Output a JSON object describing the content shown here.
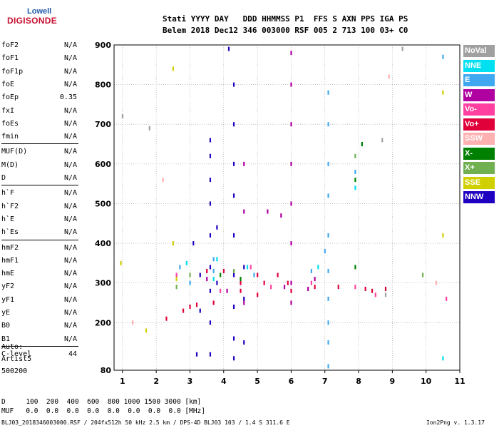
{
  "logo": {
    "top": "Lowell",
    "bottom": "DIGISONDE"
  },
  "header": {
    "row1": "Stati YYYY DAY   DDD HHMMSS P1  FFS S AXN PPS IGA PS",
    "row2": "Belem 2018 Dec12 346 003000 RSF 005 2 713 100 03+ C0"
  },
  "params": [
    [
      {
        "label": "foF2",
        "value": "N/A"
      },
      {
        "label": "foF1",
        "value": "N/A"
      },
      {
        "label": "foF1p",
        "value": "N/A"
      },
      {
        "label": "foE",
        "value": "N/A"
      },
      {
        "label": "foEp",
        "value": "0.35"
      },
      {
        "label": "fxI",
        "value": "N/A"
      },
      {
        "label": "foEs",
        "value": "N/A"
      },
      {
        "label": "fmin",
        "value": "N/A"
      }
    ],
    [
      {
        "label": "MUF(D)",
        "value": "N/A"
      },
      {
        "label": "M(D)",
        "value": "N/A"
      },
      {
        "label": "D",
        "value": "N/A"
      }
    ],
    [
      {
        "label": "h`F",
        "value": "N/A"
      },
      {
        "label": "h`F2",
        "value": "N/A"
      },
      {
        "label": "h`E",
        "value": "N/A"
      },
      {
        "label": "h`Es",
        "value": "N/A"
      }
    ],
    [
      {
        "label": "hmF2",
        "value": "N/A"
      },
      {
        "label": "hmF1",
        "value": "N/A"
      },
      {
        "label": "hmE",
        "value": "N/A"
      },
      {
        "label": "yF2",
        "value": "N/A"
      },
      {
        "label": "yF1",
        "value": "N/A"
      },
      {
        "label": "yE",
        "value": "N/A"
      },
      {
        "label": "B0",
        "value": "N/A"
      },
      {
        "label": "B1",
        "value": "N/A"
      }
    ],
    [
      {
        "label": "C-level",
        "value": "44"
      }
    ]
  ],
  "autoscale": {
    "line1": "Auto:",
    "line2": "Artist5",
    "line3": "500200"
  },
  "legend": [
    {
      "label": "NoVal",
      "color": "#a0a0a0"
    },
    {
      "label": "NNE",
      "color": "#00e0f0"
    },
    {
      "label": "E",
      "color": "#40a8f0"
    },
    {
      "label": "W",
      "color": "#b000a0"
    },
    {
      "label": "Vo-",
      "color": "#ff40a0"
    },
    {
      "label": "Vo+",
      "color": "#e0003a"
    },
    {
      "label": "SSW",
      "color": "#ffb0b0"
    },
    {
      "label": "X-",
      "color": "#008000"
    },
    {
      "label": "X+",
      "color": "#70b050"
    },
    {
      "label": "SSE",
      "color": "#d0d000"
    },
    {
      "label": "NNW",
      "color": "#2000c0"
    }
  ],
  "chart_data": {
    "type": "scatter",
    "xlim": [
      0.75,
      11
    ],
    "ylim": [
      80,
      900
    ],
    "x_ticks": [
      1,
      2,
      3,
      4,
      5,
      6,
      7,
      8,
      9,
      10,
      11
    ],
    "y_ticks": [
      80,
      200,
      300,
      400,
      500,
      600,
      700,
      800,
      900
    ],
    "grid": true,
    "legend_placement": "right",
    "series": [
      {
        "name": "NNW",
        "color": "#2000c0",
        "points": [
          [
            3.6,
            120
          ],
          [
            3.6,
            200
          ],
          [
            3.6,
            280
          ],
          [
            3.6,
            340
          ],
          [
            3.6,
            420
          ],
          [
            3.6,
            500
          ],
          [
            3.6,
            560
          ],
          [
            3.6,
            620
          ],
          [
            3.6,
            660
          ],
          [
            3.3,
            230
          ],
          [
            3.3,
            320
          ],
          [
            3.8,
            300
          ],
          [
            3.8,
            440
          ],
          [
            4.3,
            110
          ],
          [
            4.3,
            160
          ],
          [
            4.3,
            240
          ],
          [
            4.3,
            320
          ],
          [
            4.3,
            420
          ],
          [
            4.3,
            520
          ],
          [
            4.3,
            600
          ],
          [
            4.3,
            700
          ],
          [
            4.3,
            800
          ],
          [
            4.6,
            150
          ],
          [
            4.6,
            260
          ],
          [
            4.6,
            340
          ],
          [
            3.1,
            400
          ],
          [
            3.2,
            120
          ],
          [
            4.15,
            890
          ]
        ]
      },
      {
        "name": "W",
        "color": "#b000a0",
        "points": [
          [
            6.0,
            250
          ],
          [
            6.0,
            300
          ],
          [
            6.0,
            400
          ],
          [
            6.0,
            500
          ],
          [
            6.0,
            600
          ],
          [
            6.0,
            700
          ],
          [
            6.0,
            800
          ],
          [
            6.0,
            880
          ],
          [
            4.6,
            250
          ],
          [
            4.6,
            480
          ],
          [
            4.6,
            600
          ],
          [
            5.3,
            480
          ],
          [
            5.8,
            290
          ],
          [
            5.7,
            470
          ],
          [
            6.7,
            310
          ],
          [
            6.5,
            285
          ],
          [
            4.1,
            280
          ],
          [
            3.5,
            310
          ]
        ]
      },
      {
        "name": "Vo+",
        "color": "#e0003a",
        "points": [
          [
            3.0,
            240
          ],
          [
            2.8,
            230
          ],
          [
            3.2,
            245
          ],
          [
            3.7,
            250
          ],
          [
            3.5,
            330
          ],
          [
            4.5,
            280
          ],
          [
            4.5,
            300
          ],
          [
            5.0,
            320
          ],
          [
            5.2,
            300
          ],
          [
            5.0,
            270
          ],
          [
            5.9,
            300
          ],
          [
            6.0,
            280
          ],
          [
            6.7,
            290
          ],
          [
            7.4,
            290
          ],
          [
            8.2,
            285
          ],
          [
            8.4,
            280
          ],
          [
            8.8,
            285
          ],
          [
            2.3,
            210
          ],
          [
            4.0,
            330
          ],
          [
            5.6,
            320
          ]
        ]
      },
      {
        "name": "Vo-",
        "color": "#ff40a0",
        "points": [
          [
            2.6,
            320
          ],
          [
            3.9,
            280
          ],
          [
            4.8,
            340
          ],
          [
            5.4,
            290
          ],
          [
            6.6,
            300
          ],
          [
            7.9,
            290
          ],
          [
            10.6,
            260
          ],
          [
            8.5,
            270
          ]
        ]
      },
      {
        "name": "E",
        "color": "#40a8f0",
        "points": [
          [
            7.1,
            90
          ],
          [
            7.1,
            150
          ],
          [
            7.1,
            200
          ],
          [
            7.1,
            260
          ],
          [
            7.1,
            330
          ],
          [
            7.1,
            420
          ],
          [
            7.1,
            520
          ],
          [
            7.1,
            600
          ],
          [
            7.1,
            700
          ],
          [
            7.1,
            780
          ],
          [
            7.0,
            380
          ],
          [
            2.7,
            340
          ],
          [
            3.7,
            330
          ],
          [
            3.7,
            360
          ],
          [
            4.9,
            320
          ],
          [
            6.6,
            330
          ],
          [
            7.9,
            580
          ],
          [
            10.5,
            870
          ],
          [
            8.1,
            650
          ],
          [
            3.0,
            300
          ]
        ]
      },
      {
        "name": "NNE",
        "color": "#00e0f0",
        "points": [
          [
            2.9,
            350
          ],
          [
            3.8,
            360
          ],
          [
            4.7,
            340
          ],
          [
            6.8,
            340
          ],
          [
            10.5,
            110
          ],
          [
            7.9,
            540
          ],
          [
            3.7,
            310
          ]
        ]
      },
      {
        "name": "X-",
        "color": "#008000",
        "points": [
          [
            7.9,
            340
          ],
          [
            7.9,
            560
          ],
          [
            8.1,
            650
          ],
          [
            3.9,
            320
          ],
          [
            4.5,
            310
          ]
        ]
      },
      {
        "name": "X+",
        "color": "#70b050",
        "points": [
          [
            2.6,
            290
          ],
          [
            4.3,
            330
          ],
          [
            7.9,
            620
          ],
          [
            3.0,
            320
          ],
          [
            9.9,
            320
          ]
        ]
      },
      {
        "name": "SSE",
        "color": "#d0d000",
        "points": [
          [
            0.95,
            350
          ],
          [
            2.5,
            840
          ],
          [
            2.5,
            400
          ],
          [
            10.5,
            420
          ],
          [
            10.5,
            780
          ],
          [
            1.7,
            180
          ],
          [
            2.6,
            310
          ]
        ]
      },
      {
        "name": "SSW",
        "color": "#ffb0b0",
        "points": [
          [
            2.2,
            560
          ],
          [
            8.9,
            820
          ],
          [
            10.3,
            300
          ],
          [
            1.3,
            200
          ]
        ]
      },
      {
        "name": "NoVal",
        "color": "#a0a0a0",
        "points": [
          [
            1.0,
            720
          ],
          [
            1.8,
            690
          ],
          [
            9.3,
            890
          ],
          [
            8.7,
            660
          ],
          [
            8.8,
            270
          ]
        ]
      }
    ]
  },
  "footer": {
    "row_d": "D     100  200  400  600  800 1000 1500 3000 [km]",
    "row_muf": "MUF   0.0  0.0  0.0  0.0  0.0  0.0  0.0  0.0 [MHz]",
    "row_file": "BLJ03_2018346003000.RSF / 204fx512h 50 kHz 2.5 km / DPS-4D BLJ03 103 / 1.4 S 311.6 E",
    "version": "Ion2Png v. 1.3.17"
  }
}
